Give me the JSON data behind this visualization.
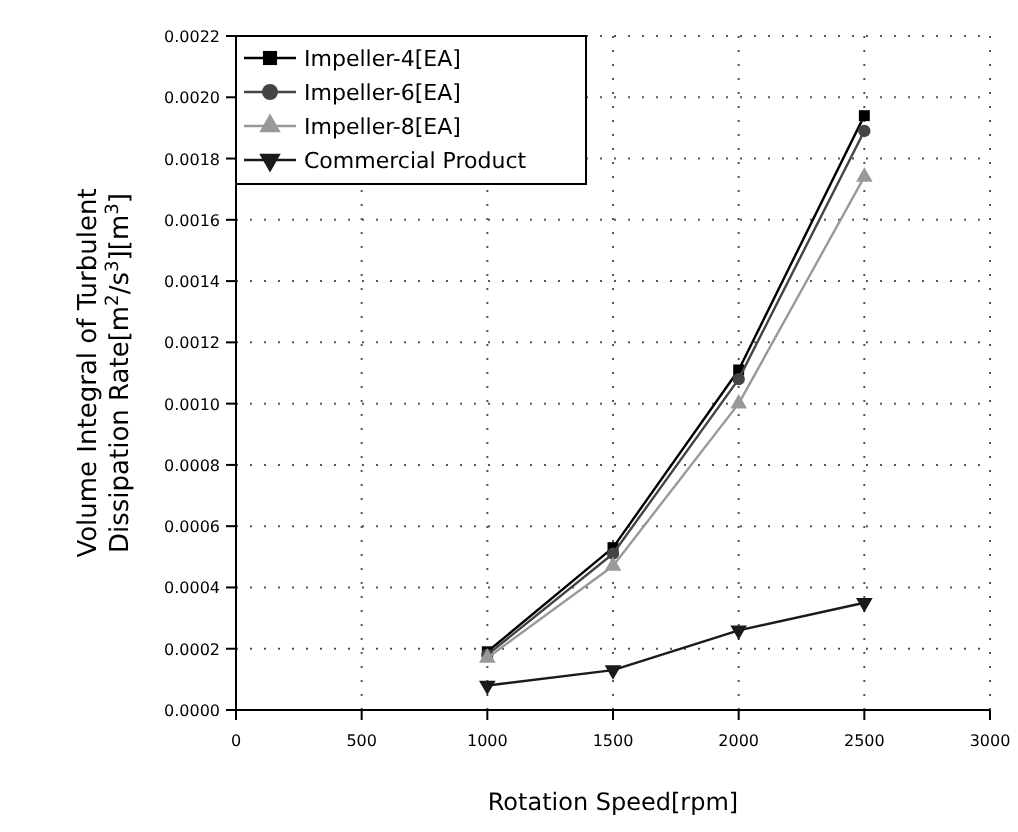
{
  "chart_data": {
    "type": "line",
    "xlabel": "Rotation Speed[rpm]",
    "ylabel": "Volume Integral of Turbulent\nDissipation Rate[m$^{2}$/s$^{3}$][m$^{3}$]",
    "x": [
      1000,
      1500,
      2000,
      2500
    ],
    "series": [
      {
        "name": "Impeller-4[EA]",
        "color": "#000000",
        "marker": "square",
        "values": [
          0.00019,
          0.00053,
          0.00111,
          0.00194
        ]
      },
      {
        "name": "Impeller-6[EA]",
        "color": "#444444",
        "marker": "circle",
        "values": [
          0.00018,
          0.00051,
          0.00108,
          0.00189
        ]
      },
      {
        "name": "Impeller-8[EA]",
        "color": "#999999",
        "marker": "triangle",
        "values": [
          0.00017,
          0.00047,
          0.001,
          0.00174
        ]
      },
      {
        "name": "Commercial Product",
        "color": "#1a1a1a",
        "marker": "triangle-down",
        "values": [
          8e-05,
          0.00013,
          0.00026,
          0.00035
        ]
      }
    ],
    "xlim": [
      0,
      3000
    ],
    "xticks": [
      0,
      500,
      1000,
      1500,
      2000,
      2500,
      3000
    ],
    "ylim": [
      0,
      0.0022
    ],
    "yticks": [
      {
        "value": 0,
        "label": "0.0000"
      },
      {
        "value": 0.0002,
        "label": "0.0002"
      },
      {
        "value": 0.0004,
        "label": "0.0004"
      },
      {
        "value": 0.0006,
        "label": "0.0006"
      },
      {
        "value": 0.0008,
        "label": "0.0008"
      },
      {
        "value": 0.001,
        "label": "0.0010"
      },
      {
        "value": 0.0012,
        "label": "0.0012"
      },
      {
        "value": 0.0014,
        "label": "0.0014"
      },
      {
        "value": 0.0016,
        "label": "0.0016"
      },
      {
        "value": 0.0018,
        "label": "0.0018"
      },
      {
        "value": 0.002,
        "label": "0.0020"
      },
      {
        "value": 0.0022,
        "label": "0.0022"
      }
    ],
    "grid": true,
    "legend": "top left",
    "line_style": "solid"
  }
}
